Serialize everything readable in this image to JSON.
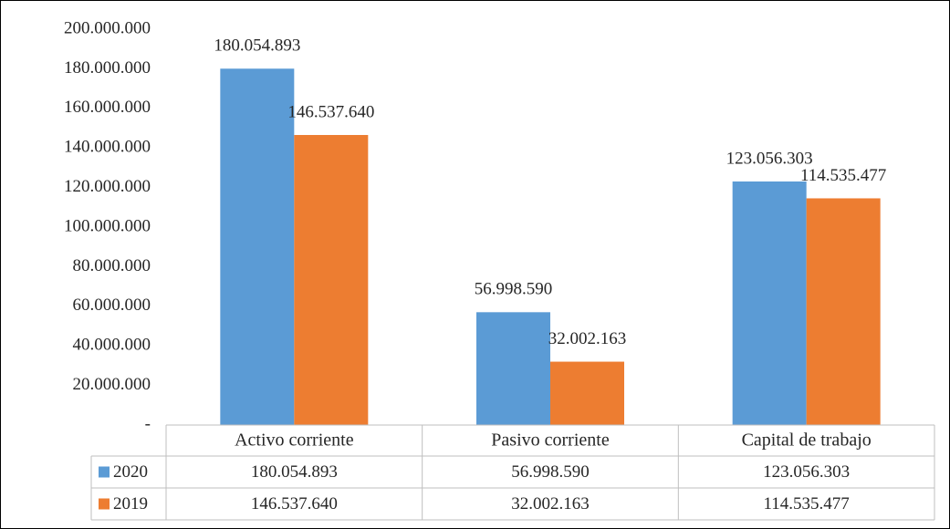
{
  "chart_data": {
    "type": "bar",
    "title": "",
    "xlabel": "",
    "ylabel": "",
    "ylim": [
      0,
      200000000
    ],
    "yticks": [
      0,
      20000000,
      40000000,
      60000000,
      80000000,
      100000000,
      120000000,
      140000000,
      160000000,
      180000000,
      200000000
    ],
    "ytick_labels": [
      "-",
      "20.000.000",
      "40.000.000",
      "60.000.000",
      "80.000.000",
      "100.000.000",
      "120.000.000",
      "140.000.000",
      "160.000.000",
      "180.000.000",
      "200.000.000"
    ],
    "categories": [
      "Activo corriente",
      "Pasivo corriente",
      "Capital de trabajo"
    ],
    "series": [
      {
        "name": "2020",
        "color": "#5B9BD5",
        "values": [
          180054893,
          56998590,
          123056303
        ],
        "labels": [
          "180.054.893",
          "56.998.590",
          "123.056.303"
        ]
      },
      {
        "name": "2019",
        "color": "#ED7D31",
        "values": [
          146537640,
          32002163,
          114535477
        ],
        "labels": [
          "146.537.640",
          "32.002.163",
          "114.535.477"
        ]
      }
    ],
    "grid": false,
    "legend": "data-table",
    "data_table": true
  }
}
